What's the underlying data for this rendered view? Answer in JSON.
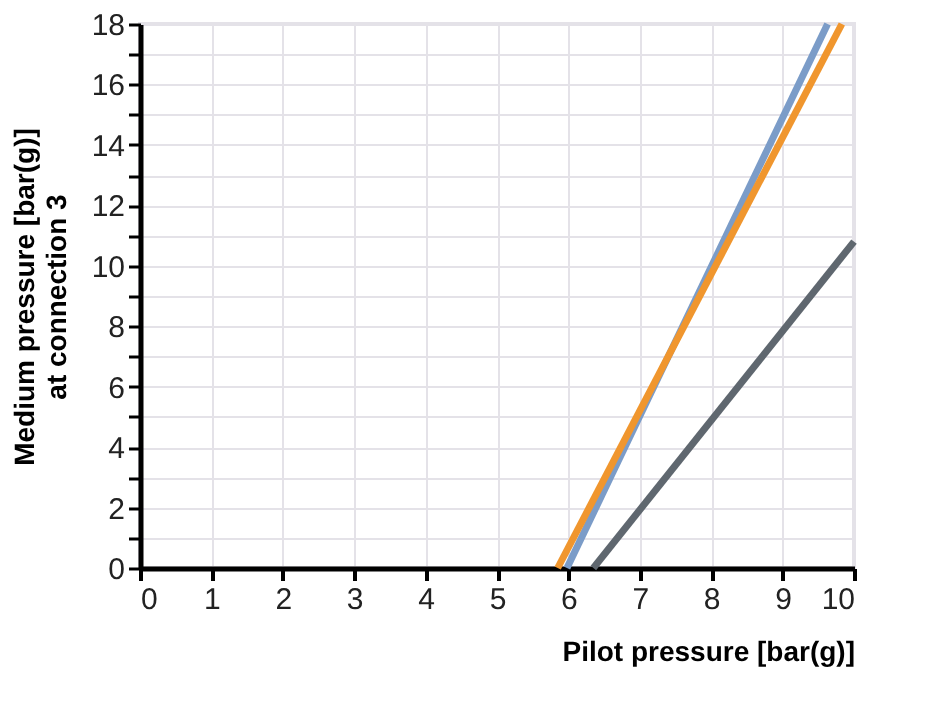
{
  "chart_data": {
    "type": "line",
    "xlabel": "Pilot pressure [bar(g)]",
    "ylabel": "Medium pressure [bar(g)]\nat connection 3",
    "series": [
      {
        "color": "#7b9cc8",
        "x": [
          5.98,
          9.63
        ],
        "values": [
          0,
          18
        ]
      },
      {
        "color": "#f0962e",
        "x": [
          5.85,
          9.83
        ],
        "values": [
          0,
          18
        ]
      },
      {
        "color": "#5f676f",
        "x": [
          6.35,
          10
        ],
        "values": [
          0,
          10.8
        ]
      }
    ],
    "xlim": [
      0,
      10
    ],
    "xticks": [
      0,
      1,
      2,
      3,
      4,
      5,
      6,
      7,
      8,
      9,
      10
    ],
    "ylim": [
      0,
      18
    ],
    "yticks": [
      0,
      {
        "value": 1,
        "label": null
      },
      2,
      {
        "value": 3,
        "label": null
      },
      4,
      {
        "value": 5,
        "label": null
      },
      6,
      {
        "value": 7,
        "label": null
      },
      8,
      {
        "value": 9,
        "label": null
      },
      10,
      {
        "value": 11,
        "label": null
      },
      12,
      {
        "value": 13,
        "label": null
      },
      14,
      {
        "value": 15,
        "label": null
      },
      16,
      {
        "value": 17,
        "label": null
      },
      18
    ],
    "grid": true,
    "marker": "none",
    "line_style": "solid"
  }
}
